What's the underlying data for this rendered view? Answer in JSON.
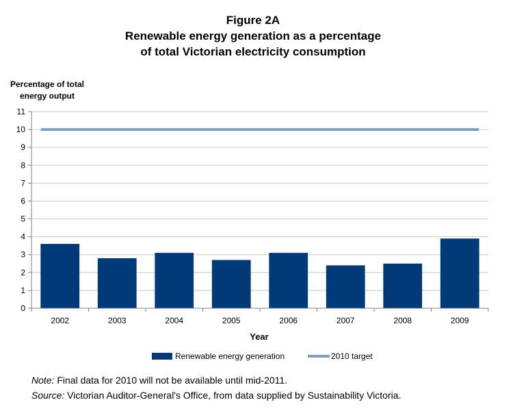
{
  "figure_label": "Figure 2A",
  "title_lines": [
    "Renewable energy generation as a percentage",
    "of total Victorian electricity consumption"
  ],
  "ylabel_lines": [
    "Percentage of total",
    "energy output"
  ],
  "note": {
    "label": "Note:",
    "text": " Final data for 2010 will not be available until mid-2011."
  },
  "source": {
    "label": "Source:",
    "text": " Victorian Auditor-General's Office, from data supplied by Sustainability Victoria."
  },
  "colors": {
    "bar": "#003a78",
    "target_line": "#7f9db9",
    "grid": "#c8c8c8",
    "axis": "#808080"
  },
  "chart_data": {
    "type": "bar",
    "title": "Renewable energy generation as a percentage of total Victorian electricity consumption",
    "xlabel": "Year",
    "ylabel": "Percentage of total energy output",
    "ylim": [
      0,
      11
    ],
    "yticks": [
      0,
      1,
      2,
      3,
      4,
      5,
      6,
      7,
      8,
      9,
      10,
      11
    ],
    "grid": true,
    "legend_position": "bottom",
    "categories": [
      "2002",
      "2003",
      "2004",
      "2005",
      "2006",
      "2007",
      "2008",
      "2009"
    ],
    "series": [
      {
        "name": "Renewable energy generation",
        "type": "bar",
        "values": [
          3.6,
          2.8,
          3.1,
          2.7,
          3.1,
          2.4,
          2.5,
          3.9
        ]
      },
      {
        "name": "2010 target",
        "type": "line",
        "values": [
          10,
          10,
          10,
          10,
          10,
          10,
          10,
          10
        ]
      }
    ]
  }
}
